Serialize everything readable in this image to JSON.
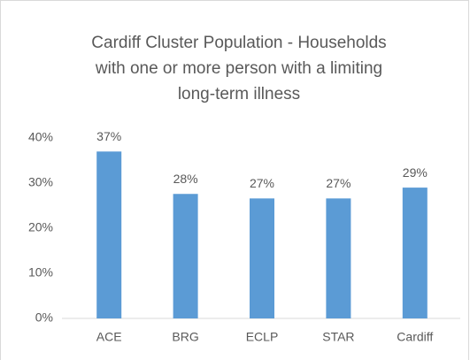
{
  "chart_data": {
    "type": "bar",
    "title": [
      "Cardiff Cluster Population - Households",
      "with one or more person with a limiting",
      "long-term illness"
    ],
    "categories": [
      "ACE",
      "BRG",
      "ECLP",
      "STAR",
      "Cardiff"
    ],
    "values": [
      37,
      27.6,
      26.6,
      26.6,
      29
    ],
    "value_labels": [
      "37%",
      "28%",
      "27%",
      "27%",
      "29%"
    ],
    "color": "#5b9bd5",
    "ylim": [
      0,
      40
    ],
    "yticks": [
      {
        "value": 0,
        "label": "0%"
      },
      {
        "value": 10,
        "label": "10%"
      },
      {
        "value": 20,
        "label": "20%"
      },
      {
        "value": 30,
        "label": "30%"
      },
      {
        "value": 40,
        "label": "40%"
      }
    ],
    "grid": false
  }
}
